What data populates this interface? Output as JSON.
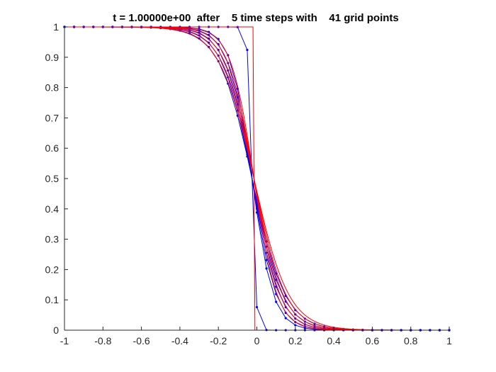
{
  "chart_data": {
    "type": "line",
    "title": "t = 1.00000e+00  after    5 time steps with    41 grid points",
    "xlabel": "",
    "ylabel": "",
    "xlim": [
      -1,
      1
    ],
    "ylim": [
      0,
      1
    ],
    "xticks": [
      -1,
      -0.8,
      -0.6,
      -0.4,
      -0.2,
      0,
      0.2,
      0.4,
      0.6,
      0.8,
      1
    ],
    "xtick_labels": [
      "-1",
      "-0.8",
      "-0.6",
      "-0.4",
      "-0.2",
      "0",
      "0.2",
      "0.4",
      "0.6",
      "0.8",
      "1"
    ],
    "yticks": [
      0,
      0.1,
      0.2,
      0.3,
      0.4,
      0.5,
      0.6,
      0.7,
      0.8,
      0.9,
      1
    ],
    "ytick_labels": [
      "0",
      "0.1",
      "0.2",
      "0.3",
      "0.4",
      "0.5",
      "0.6",
      "0.7",
      "0.8",
      "0.9",
      "1"
    ],
    "grid": false,
    "legend": "none",
    "colors": {
      "numerical": "#0000ff",
      "exact": "#ff0000",
      "axis": "#262626",
      "background": "#ffffff"
    },
    "grid_points": 41,
    "x_range": [
      -1,
      1
    ],
    "numerical_widths": [
      0.02,
      0.11,
      0.125,
      0.14,
      0.155,
      0.17
    ],
    "exact_widths": [
      0.001,
      0.12,
      0.135,
      0.15,
      0.165,
      0.18
    ],
    "exact_center": -0.015,
    "exact_samples": 201
  }
}
